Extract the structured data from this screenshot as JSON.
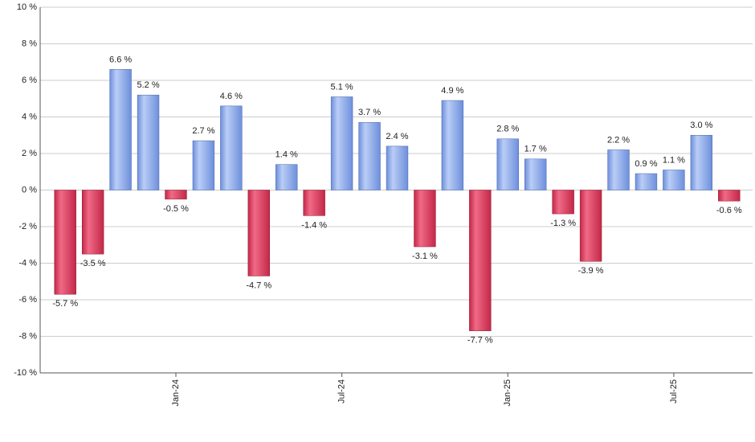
{
  "chart_data": {
    "type": "bar",
    "categories": [
      null,
      null,
      null,
      null,
      "Jan-24",
      null,
      null,
      null,
      null,
      null,
      "Jul-24",
      null,
      null,
      null,
      null,
      null,
      "Jan-25",
      null,
      null,
      null,
      null,
      null,
      "Jul-25",
      null,
      null
    ],
    "values": [
      -5.7,
      -3.5,
      6.6,
      5.2,
      -0.5,
      2.7,
      4.6,
      -4.7,
      1.4,
      -1.4,
      5.1,
      3.7,
      2.4,
      -3.1,
      4.9,
      -7.7,
      2.8,
      1.7,
      -1.3,
      -3.9,
      2.2,
      0.9,
      1.1,
      3.0,
      -0.6
    ],
    "value_labels": [
      "-5.7 %",
      "-3.5 %",
      "6.6 %",
      "5.2 %",
      "-0.5 %",
      "2.7 %",
      "4.6 %",
      "-4.7 %",
      "1.4 %",
      "-1.4 %",
      "5.1 %",
      "3.7 %",
      "2.4 %",
      "-3.1 %",
      "4.9 %",
      "-7.7 %",
      "2.8 %",
      "1.7 %",
      "-1.3 %",
      "-3.9 %",
      "2.2 %",
      "0.9 %",
      "1.1 %",
      "3.0 %",
      "-0.6 %"
    ],
    "positive_color": "#6d8fdc",
    "negative_color": "#c42748",
    "ylim": [
      -10,
      10
    ],
    "yticks": [
      {
        "value": -10,
        "label": "-10 %"
      },
      {
        "value": -8,
        "label": "-8 %"
      },
      {
        "value": -6,
        "label": "-6 %"
      },
      {
        "value": -4,
        "label": "-4 %"
      },
      {
        "value": -2,
        "label": "-2 %"
      },
      {
        "value": 0,
        "label": "0 %"
      },
      {
        "value": 2,
        "label": "2 %"
      },
      {
        "value": 4,
        "label": "4 %"
      },
      {
        "value": 6,
        "label": "6 %"
      },
      {
        "value": 8,
        "label": "8 %"
      },
      {
        "value": 10,
        "label": "10 %"
      }
    ],
    "grid": true
  }
}
